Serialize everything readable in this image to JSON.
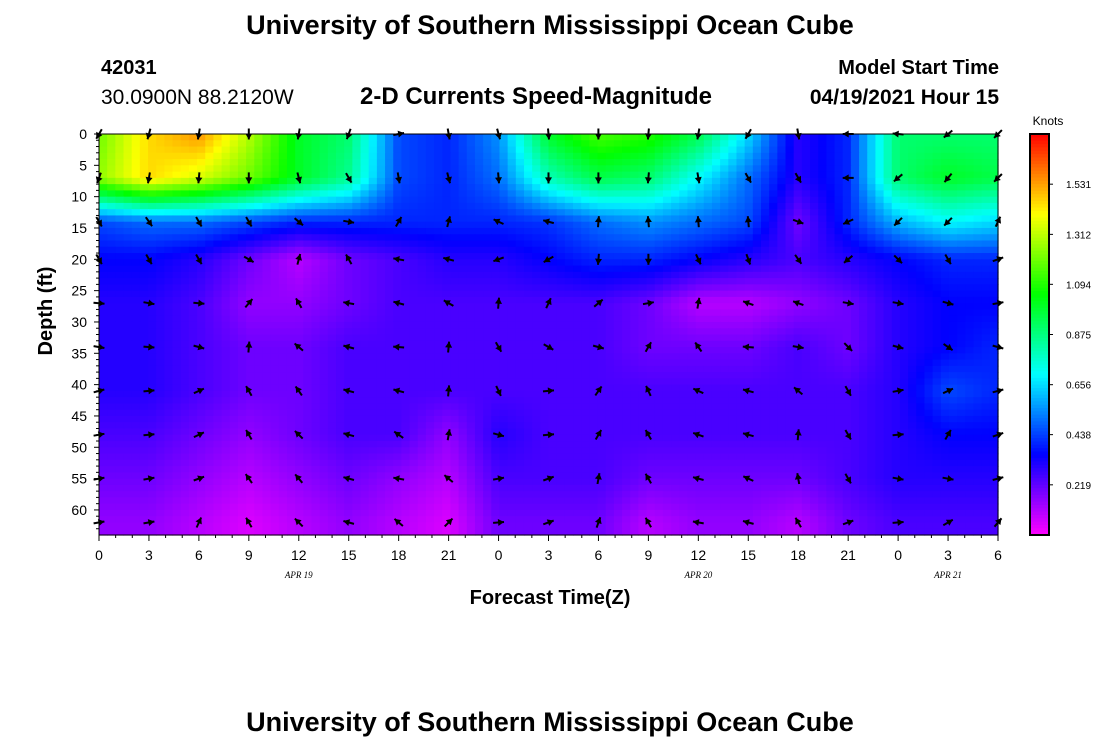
{
  "header": {
    "title": "University of Southern Mississippi Ocean Cube",
    "station_id": "42031",
    "coordinates": "30.0900N  88.2120W",
    "plot_title": "2-D Currents Speed-Magnitude",
    "model_start_label": "Model Start Time",
    "model_start_value": "04/19/2021 Hour 15"
  },
  "footer": {
    "title": "University of Southern Mississippi Ocean Cube"
  },
  "chart_data": {
    "type": "heatmap",
    "xlabel": "Forecast Time(Z)",
    "ylabel": "Depth (ft)",
    "x_tick_labels": [
      "0",
      "3",
      "6",
      "9",
      "12",
      "15",
      "18",
      "21",
      "0",
      "3",
      "6",
      "9",
      "12",
      "15",
      "18",
      "21",
      "0",
      "3",
      "6"
    ],
    "x_range_hours": [
      0,
      54
    ],
    "date_labels": [
      {
        "text": "APR 19",
        "hour": 12
      },
      {
        "text": "APR 20",
        "hour": 36
      },
      {
        "text": "APR 21",
        "hour": 51
      }
    ],
    "y_tick_labels": [
      "0",
      "5",
      "10",
      "15",
      "20",
      "25",
      "30",
      "35",
      "40",
      "45",
      "50",
      "55",
      "60"
    ],
    "y_range_ft": [
      0,
      64
    ],
    "y_inverted": true,
    "colorbar": {
      "label": "Knots",
      "ticks": [
        "1.531",
        "1.312",
        "1.094",
        "0.875",
        "0.656",
        "0.438",
        "0.219"
      ],
      "range": [
        0,
        1.75
      ],
      "colors": [
        "#ff00ff",
        "#0000ff",
        "#00ffff",
        "#00ff00",
        "#ffff00",
        "#ff0000"
      ]
    },
    "time_hours": [
      0,
      3,
      6,
      9,
      12,
      15,
      18,
      21,
      24,
      27,
      30,
      33,
      36,
      39,
      42,
      45,
      48,
      51,
      54
    ],
    "depth_ft": [
      0,
      7,
      14,
      20,
      27,
      34,
      41,
      48,
      55,
      62
    ],
    "speed_knots": [
      [
        1.2,
        1.45,
        1.55,
        1.3,
        1.0,
        0.9,
        0.45,
        0.4,
        0.55,
        1.0,
        1.15,
        1.1,
        0.95,
        0.65,
        0.3,
        0.4,
        0.9,
        0.9,
        0.9
      ],
      [
        1.25,
        1.45,
        1.35,
        1.2,
        1.0,
        0.85,
        0.45,
        0.4,
        0.5,
        0.8,
        0.95,
        0.9,
        0.7,
        0.5,
        0.3,
        0.4,
        0.9,
        1.0,
        0.95
      ],
      [
        0.45,
        0.5,
        0.5,
        0.45,
        0.4,
        0.4,
        0.4,
        0.4,
        0.4,
        0.42,
        0.5,
        0.55,
        0.5,
        0.45,
        0.2,
        0.4,
        0.6,
        0.7,
        0.65
      ],
      [
        0.35,
        0.35,
        0.3,
        0.2,
        0.1,
        0.2,
        0.25,
        0.3,
        0.3,
        0.35,
        0.4,
        0.4,
        0.35,
        0.3,
        0.25,
        0.3,
        0.35,
        0.4,
        0.4
      ],
      [
        0.3,
        0.3,
        0.25,
        0.15,
        0.15,
        0.2,
        0.25,
        0.25,
        0.25,
        0.25,
        0.25,
        0.2,
        0.1,
        0.1,
        0.15,
        0.2,
        0.3,
        0.35,
        0.35
      ],
      [
        0.3,
        0.3,
        0.25,
        0.2,
        0.2,
        0.25,
        0.25,
        0.25,
        0.25,
        0.25,
        0.25,
        0.2,
        0.2,
        0.2,
        0.25,
        0.2,
        0.3,
        0.35,
        0.4
      ],
      [
        0.3,
        0.3,
        0.25,
        0.2,
        0.2,
        0.25,
        0.25,
        0.25,
        0.25,
        0.25,
        0.25,
        0.25,
        0.25,
        0.25,
        0.25,
        0.25,
        0.3,
        0.45,
        0.4
      ],
      [
        0.25,
        0.25,
        0.2,
        0.15,
        0.2,
        0.25,
        0.25,
        0.15,
        0.3,
        0.25,
        0.25,
        0.25,
        0.25,
        0.25,
        0.25,
        0.25,
        0.3,
        0.35,
        0.35
      ],
      [
        0.2,
        0.2,
        0.15,
        0.1,
        0.15,
        0.2,
        0.15,
        0.1,
        0.25,
        0.25,
        0.25,
        0.2,
        0.2,
        0.2,
        0.2,
        0.25,
        0.3,
        0.3,
        0.3
      ],
      [
        0.15,
        0.15,
        0.1,
        0.05,
        0.1,
        0.15,
        0.1,
        0.05,
        0.2,
        0.2,
        0.2,
        0.1,
        0.15,
        0.15,
        0.1,
        0.2,
        0.25,
        0.25,
        0.25
      ]
    ],
    "direction_deg": [
      [
        240,
        255,
        260,
        270,
        260,
        250,
        10,
        280,
        285,
        275,
        270,
        265,
        260,
        240,
        280,
        180,
        175,
        220,
        225
      ],
      [
        250,
        260,
        265,
        270,
        285,
        300,
        280,
        285,
        275,
        270,
        270,
        265,
        280,
        300,
        300,
        180,
        220,
        230,
        225
      ],
      [
        300,
        305,
        300,
        300,
        320,
        350,
        60,
        75,
        155,
        165,
        85,
        95,
        95,
        95,
        340,
        205,
        225,
        225,
        65
      ],
      [
        300,
        300,
        300,
        330,
        75,
        120,
        170,
        165,
        200,
        210,
        265,
        270,
        295,
        290,
        305,
        220,
        315,
        300,
        20
      ],
      [
        355,
        350,
        355,
        50,
        120,
        170,
        165,
        150,
        85,
        65,
        40,
        10,
        80,
        160,
        160,
        350,
        350,
        345,
        10
      ],
      [
        350,
        355,
        345,
        85,
        140,
        165,
        175,
        85,
        300,
        330,
        345,
        60,
        125,
        175,
        350,
        315,
        345,
        325,
        345
      ],
      [
        15,
        5,
        25,
        120,
        125,
        165,
        165,
        85,
        295,
        5,
        55,
        115,
        155,
        165,
        140,
        300,
        10,
        25,
        15
      ],
      [
        10,
        5,
        25,
        120,
        135,
        165,
        145,
        80,
        345,
        5,
        60,
        120,
        160,
        165,
        85,
        300,
        5,
        60,
        20
      ],
      [
        10,
        10,
        20,
        125,
        130,
        165,
        170,
        140,
        10,
        20,
        80,
        120,
        165,
        155,
        100,
        300,
        350,
        350,
        15
      ],
      [
        10,
        10,
        65,
        120,
        135,
        165,
        140,
        45,
        5,
        20,
        70,
        120,
        170,
        165,
        120,
        20,
        5,
        30,
        50
      ]
    ]
  }
}
